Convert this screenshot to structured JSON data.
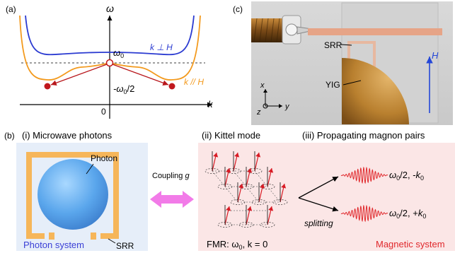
{
  "panels": {
    "a": {
      "label": "(a)",
      "y_axis": "ω",
      "x_axis": "k",
      "origin": "0",
      "omega0": "ω",
      "omega0_sub": "0",
      "half_prefix": "-ω",
      "half_sub": "0",
      "half_suffix": "/2",
      "curve_perp": "k ⊥ H",
      "curve_par": "k // H",
      "colors": {
        "perp": "#2b3bd1",
        "par": "#f39a1e",
        "arrow": "#b8171c"
      }
    },
    "c": {
      "label": "(c)",
      "srr": "SRR",
      "yig": "YIG",
      "field": "H",
      "axis_x": "x",
      "axis_y": "y",
      "axis_z": "z"
    },
    "b": {
      "label": "(b)",
      "title_i": "(i) Microwave photons",
      "photon": "Photon",
      "srr": "SRR",
      "photon_system": "Photon system",
      "coupling": "Coupling ",
      "coupling_g": "g",
      "title_ii": "(ii) Kittel mode",
      "title_iii": "(iii) Propagating magnon pairs",
      "splitting": "splitting",
      "fmr_prefix": "FMR: ω",
      "fmr_sub": "0",
      "fmr_suffix": ", k = 0",
      "magnon_top": "ω0/2, -k0",
      "magnon_bottom": "ω0/2, +k0",
      "magnetic_system": "Magnetic system",
      "colors": {
        "photon_text": "#3a3fd6",
        "magnetic_text": "#e0282c",
        "srr": "#f6b65a",
        "coupling": "#f27be8"
      }
    }
  }
}
